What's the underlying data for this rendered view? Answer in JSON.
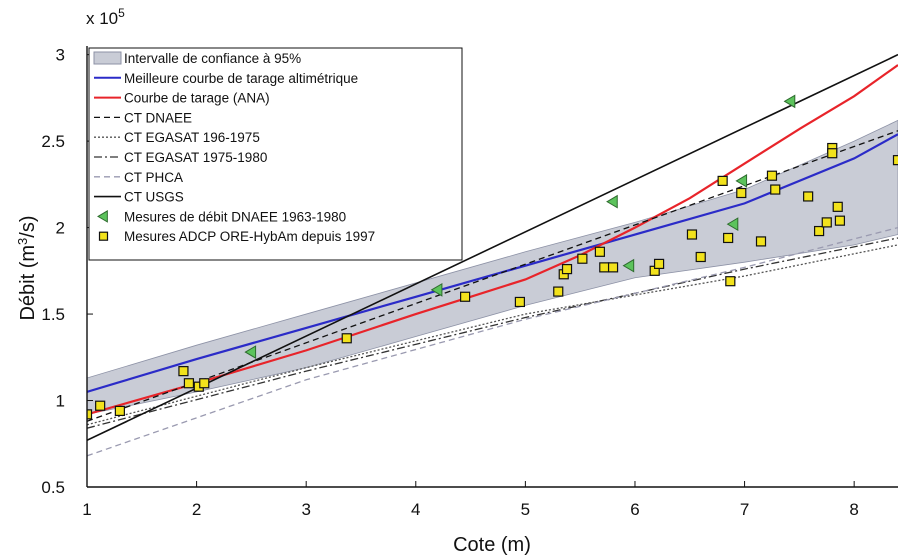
{
  "chart_data": {
    "type": "line",
    "xlabel": "Cote (m)",
    "ylabel": "Débit (m³/s)",
    "ylabel_parts": {
      "pre": "Débit (m",
      "sup": "3",
      "post": "/s)"
    },
    "multiplier": {
      "base": "x 10",
      "exp": "5"
    },
    "xlim": [
      1,
      8.4
    ],
    "ylim": [
      0.5,
      3.05
    ],
    "x_ticks": [
      1,
      2,
      3,
      4,
      5,
      6,
      7,
      8
    ],
    "x_tick_labels": [
      "1",
      "2",
      "3",
      "4",
      "5",
      "6",
      "7",
      "8"
    ],
    "y_ticks": [
      0.5,
      1,
      1.5,
      2,
      2.5,
      3
    ],
    "y_tick_labels": [
      "0.5",
      "1",
      "1.5",
      "2",
      "2.5",
      "3"
    ],
    "grid": false,
    "legend_position": "top-left",
    "confidence_band": {
      "label": "Intervalle de confiance à 95%",
      "x": [
        1.0,
        2.0,
        3.0,
        4.0,
        5.0,
        6.0,
        7.0,
        8.0,
        8.4
      ],
      "upper": [
        1.13,
        1.32,
        1.5,
        1.68,
        1.86,
        2.03,
        2.22,
        2.5,
        2.62
      ],
      "lower": [
        0.92,
        1.05,
        1.19,
        1.37,
        1.55,
        1.71,
        1.8,
        1.9,
        1.96
      ]
    },
    "series": [
      {
        "name": "Meilleure courbe de tarage altimétrique",
        "color": "#2b2bc8",
        "dash": "",
        "width": 2.2,
        "x": [
          1,
          2,
          3,
          4,
          5,
          6,
          7,
          8,
          8.4
        ],
        "y": [
          1.05,
          1.24,
          1.42,
          1.6,
          1.78,
          1.96,
          2.14,
          2.4,
          2.54
        ]
      },
      {
        "name": "Courbe de tarage (ANA)",
        "color": "#e8242a",
        "dash": "",
        "width": 2.2,
        "x": [
          1,
          2,
          3,
          4,
          4.5,
          5,
          5.5,
          6,
          6.5,
          7,
          7.5,
          8,
          8.4
        ],
        "y": [
          0.92,
          1.1,
          1.29,
          1.5,
          1.6,
          1.7,
          1.84,
          2.0,
          2.17,
          2.37,
          2.57,
          2.76,
          2.94
        ]
      },
      {
        "name": "CT DNAEE",
        "color": "#111111",
        "dash": "6,4",
        "width": 1.3,
        "x": [
          1,
          8.4
        ],
        "y": [
          0.88,
          2.56
        ]
      },
      {
        "name": "CT EGASAT 196-1975",
        "color": "#555555",
        "dash": "2,2",
        "width": 1.3,
        "x": [
          1,
          3,
          5,
          7,
          8.4
        ],
        "y": [
          0.86,
          1.19,
          1.5,
          1.72,
          1.9
        ]
      },
      {
        "name": "CT EGASAT 1975-1980",
        "color": "#333333",
        "dash": "8,3,2,3",
        "width": 1.3,
        "x": [
          1,
          3,
          5,
          7,
          8.4
        ],
        "y": [
          0.84,
          1.17,
          1.48,
          1.76,
          1.94
        ]
      },
      {
        "name": "CT PHCA",
        "color": "#9a9ab0",
        "dash": "6,4",
        "width": 1.3,
        "x": [
          1,
          3,
          5,
          7,
          8.4
        ],
        "y": [
          0.68,
          1.12,
          1.47,
          1.77,
          2.0
        ]
      },
      {
        "name": "CT USGS",
        "color": "#111111",
        "dash": "",
        "width": 1.6,
        "x": [
          1,
          8.4
        ],
        "y": [
          0.77,
          3.0
        ]
      }
    ],
    "scatter": [
      {
        "name": "Mesures de débit DNAEE 1963-1980",
        "marker": "triangle-left",
        "color": "#5cc35c",
        "points": [
          [
            2.5,
            1.28
          ],
          [
            4.2,
            1.64
          ],
          [
            5.8,
            2.15
          ],
          [
            5.95,
            1.78
          ],
          [
            6.9,
            2.02
          ],
          [
            6.98,
            2.27
          ],
          [
            7.42,
            2.73
          ]
        ]
      },
      {
        "name": "Mesures ADCP ORE-HybAm depuis 1997",
        "marker": "square",
        "color": "#f2e21c",
        "points": [
          [
            1.0,
            0.92
          ],
          [
            1.12,
            0.97
          ],
          [
            1.3,
            0.94
          ],
          [
            1.88,
            1.17
          ],
          [
            1.93,
            1.1
          ],
          [
            2.02,
            1.08
          ],
          [
            2.07,
            1.1
          ],
          [
            3.37,
            1.36
          ],
          [
            4.45,
            1.6
          ],
          [
            4.95,
            1.57
          ],
          [
            5.3,
            1.63
          ],
          [
            5.35,
            1.73
          ],
          [
            5.38,
            1.76
          ],
          [
            5.52,
            1.82
          ],
          [
            5.68,
            1.86
          ],
          [
            5.72,
            1.77
          ],
          [
            5.8,
            1.77
          ],
          [
            6.18,
            1.75
          ],
          [
            6.22,
            1.79
          ],
          [
            6.52,
            1.96
          ],
          [
            6.6,
            1.83
          ],
          [
            6.8,
            2.27
          ],
          [
            6.85,
            1.94
          ],
          [
            6.87,
            1.69
          ],
          [
            6.97,
            2.2
          ],
          [
            7.15,
            1.92
          ],
          [
            7.25,
            2.3
          ],
          [
            7.28,
            2.22
          ],
          [
            7.58,
            2.18
          ],
          [
            7.68,
            1.98
          ],
          [
            7.75,
            2.03
          ],
          [
            7.8,
            2.46
          ],
          [
            7.8,
            2.43
          ],
          [
            7.85,
            2.12
          ],
          [
            7.87,
            2.04
          ],
          [
            8.4,
            2.39
          ]
        ]
      }
    ]
  },
  "colors": {
    "band_fill": "#c9ccd6",
    "band_stroke": "#8d92a6",
    "marker_stroke": "#111111",
    "axis": "#111111"
  }
}
